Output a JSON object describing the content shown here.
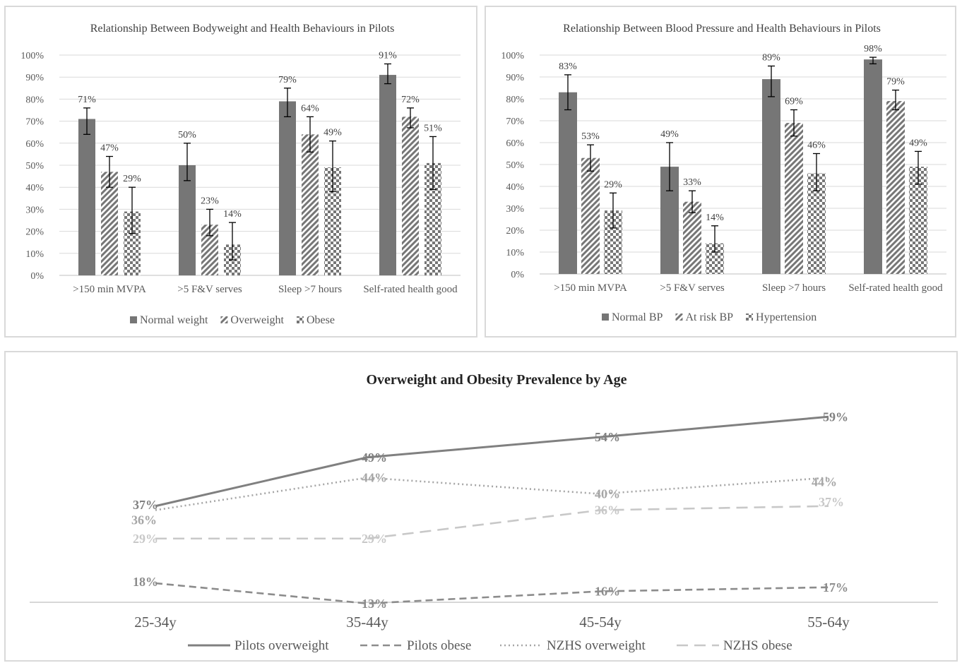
{
  "chart_data": [
    {
      "type": "bar",
      "title": "Relationship Between Bodyweight and Health Behaviours in Pilots",
      "categories": [
        ">150 min MVPA",
        ">5 F&V serves",
        "Sleep >7 hours",
        "Self-rated health good"
      ],
      "ylim": [
        0,
        100
      ],
      "y_ticks": [
        "0%",
        "10%",
        "20%",
        "30%",
        "40%",
        "50%",
        "60%",
        "70%",
        "80%",
        "90%",
        "100%"
      ],
      "grid": true,
      "legend_position": "bottom",
      "series": [
        {
          "name": "Normal weight",
          "values": [
            71,
            50,
            79,
            91
          ],
          "labels": [
            "71%",
            "50%",
            "79%",
            "91%"
          ],
          "err_low": [
            64,
            43,
            72,
            87
          ],
          "err_high": [
            76,
            60,
            85,
            96
          ],
          "pattern": "solid",
          "color": "#767676"
        },
        {
          "name": "Overweight",
          "values": [
            47,
            23,
            64,
            72
          ],
          "labels": [
            "47%",
            "23%",
            "64%",
            "72%"
          ],
          "err_low": [
            40,
            18,
            56,
            67
          ],
          "err_high": [
            54,
            30,
            72,
            76
          ],
          "pattern": "diagonal",
          "color": "#767676"
        },
        {
          "name": "Obese",
          "values": [
            29,
            14,
            49,
            51
          ],
          "labels": [
            "29%",
            "14%",
            "49%",
            "51%"
          ],
          "err_low": [
            19,
            7,
            38,
            39
          ],
          "err_high": [
            40,
            24,
            61,
            63
          ],
          "pattern": "checker",
          "color": "#767676"
        }
      ]
    },
    {
      "type": "bar",
      "title": "Relationship Between Blood Pressure and Health Behaviours in Pilots",
      "categories": [
        ">150 min MVPA",
        ">5 F&V serves",
        "Sleep >7 hours",
        "Self-rated health good"
      ],
      "ylim": [
        0,
        100
      ],
      "y_ticks": [
        "0%",
        "10%",
        "20%",
        "30%",
        "40%",
        "50%",
        "60%",
        "70%",
        "80%",
        "90%",
        "100%"
      ],
      "grid": true,
      "legend_position": "bottom",
      "series": [
        {
          "name": "Normal BP",
          "values": [
            83,
            49,
            89,
            98
          ],
          "labels": [
            "83%",
            "49%",
            "89%",
            "98%"
          ],
          "err_low": [
            75,
            38,
            81,
            96
          ],
          "err_high": [
            91,
            60,
            95,
            99
          ],
          "pattern": "solid",
          "color": "#767676"
        },
        {
          "name": "At risk BP",
          "values": [
            53,
            33,
            69,
            79
          ],
          "labels": [
            "53%",
            "33%",
            "69%",
            "79%"
          ],
          "err_low": [
            47,
            28,
            63,
            75
          ],
          "err_high": [
            59,
            38,
            75,
            84
          ],
          "pattern": "diagonal",
          "color": "#767676"
        },
        {
          "name": "Hypertension",
          "values": [
            29,
            14,
            46,
            49
          ],
          "labels": [
            "29%",
            "14%",
            "46%",
            "49%"
          ],
          "err_low": [
            21,
            10,
            38,
            41
          ],
          "err_high": [
            37,
            22,
            55,
            56
          ],
          "pattern": "checker",
          "color": "#767676"
        }
      ]
    },
    {
      "type": "line",
      "title": "Overweight and Obesity Prevalence by Age",
      "categories": [
        "25-34y",
        "35-44y",
        "45-54y",
        "55-64y"
      ],
      "grid": false,
      "legend_position": "bottom",
      "series": [
        {
          "name": "Pilots overweight",
          "values": [
            37,
            49,
            54,
            59
          ],
          "labels": [
            "37%",
            "49%",
            "54%",
            "59%"
          ],
          "style": "solid",
          "color": "#808080"
        },
        {
          "name": "Pilots obese",
          "values": [
            18,
            13,
            16,
            17
          ],
          "labels": [
            "18%",
            "13%",
            "16%",
            "17%"
          ],
          "style": "dashed",
          "color": "#8c8c8c"
        },
        {
          "name": "NZHS overweight",
          "values": [
            36,
            44,
            40,
            44
          ],
          "labels": [
            "36%",
            "44%",
            "40%",
            "44%"
          ],
          "style": "dotted",
          "color": "#a6a6a6"
        },
        {
          "name": "NZHS obese",
          "values": [
            29,
            29,
            36,
            37
          ],
          "labels": [
            "29%",
            "29%",
            "36%",
            "37%"
          ],
          "style": "longdash",
          "color": "#c8c8c8"
        }
      ]
    }
  ]
}
